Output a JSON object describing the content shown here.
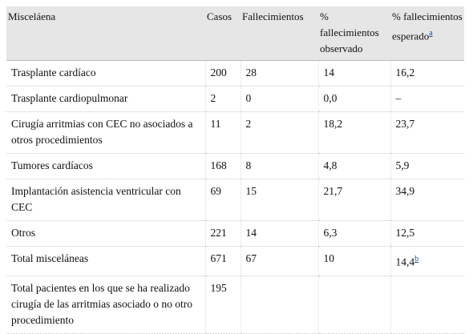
{
  "table": {
    "headers": [
      {
        "text": "Misceláena"
      },
      {
        "text": "Casos"
      },
      {
        "text": "Fallecimientos"
      },
      {
        "text": "% fallecimientos observado"
      },
      {
        "text": "% fallecimientos esperado",
        "note": "a"
      }
    ],
    "rows": [
      [
        {
          "text": "Trasplante cardíaco"
        },
        {
          "text": "200"
        },
        {
          "text": "28"
        },
        {
          "text": "14"
        },
        {
          "text": "16,2"
        }
      ],
      [
        {
          "text": "Trasplante cardiopulmonar"
        },
        {
          "text": "2"
        },
        {
          "text": "0"
        },
        {
          "text": "0,0"
        },
        {
          "text": "–"
        }
      ],
      [
        {
          "text": "Cirugía arritmias con CEC no asociados a otros procedimientos"
        },
        {
          "text": "11"
        },
        {
          "text": "2"
        },
        {
          "text": "18,2"
        },
        {
          "text": "23,7"
        }
      ],
      [
        {
          "text": "Tumores cardíacos"
        },
        {
          "text": "168"
        },
        {
          "text": "8"
        },
        {
          "text": "4,8"
        },
        {
          "text": "5,9"
        }
      ],
      [
        {
          "text": "Implantación asistencia ventricular con CEC"
        },
        {
          "text": "69"
        },
        {
          "text": "15"
        },
        {
          "text": "21,7"
        },
        {
          "text": "34,9"
        }
      ],
      [
        {
          "text": "Otros"
        },
        {
          "text": "221"
        },
        {
          "text": "14"
        },
        {
          "text": "6,3"
        },
        {
          "text": "12,5"
        }
      ],
      [
        {
          "text": "Total misceláneas"
        },
        {
          "text": "671"
        },
        {
          "text": "67"
        },
        {
          "text": "10"
        },
        {
          "text": "14,4",
          "note": "b"
        }
      ],
      [
        {
          "text": "Total pacientes en los que se ha realizado cirugía de las arritmias asociado o no otro procedimiento"
        },
        {
          "text": "195"
        }
      ]
    ]
  }
}
